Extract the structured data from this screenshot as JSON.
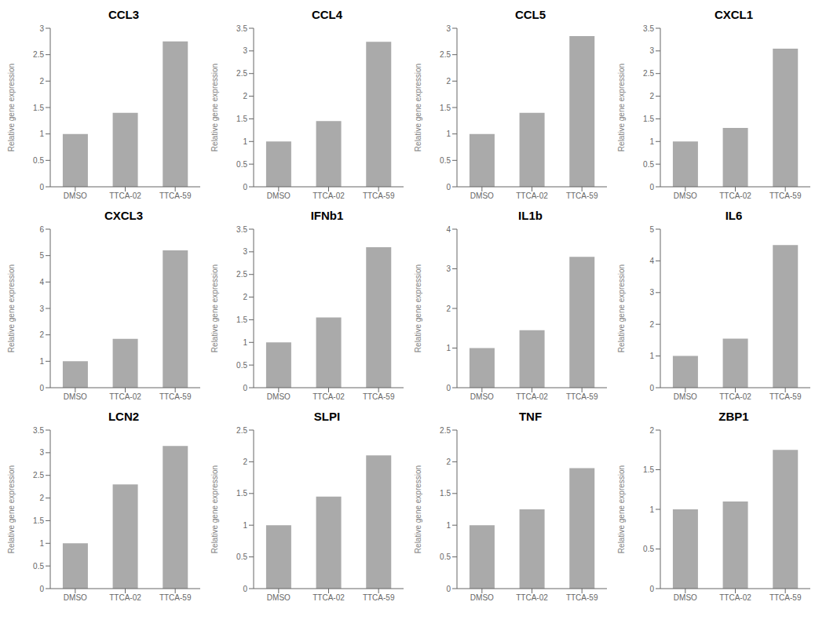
{
  "chart_data": [
    {
      "type": "bar",
      "title": "CCL3",
      "categories": [
        "DMSO",
        "TTCA-02",
        "TTCA-59"
      ],
      "values": [
        1.0,
        1.4,
        2.75
      ],
      "color": "#aaaaaa",
      "ylabel": "Relative gene expression",
      "ylim": [
        0,
        3
      ],
      "yticks": [
        0,
        0.5,
        1.0,
        1.5,
        2.0,
        2.5,
        3.0
      ],
      "grid": false
    },
    {
      "type": "bar",
      "title": "CCL4",
      "categories": [
        "DMSO",
        "TTCA-02",
        "TTCA-59"
      ],
      "values": [
        1.0,
        1.45,
        3.2
      ],
      "color": "#aaaaaa",
      "ylabel": "Relative gene expression",
      "ylim": [
        0,
        3.5
      ],
      "yticks": [
        0,
        0.5,
        1.0,
        1.5,
        2.0,
        2.5,
        3.0,
        3.5
      ],
      "grid": false
    },
    {
      "type": "bar",
      "title": "CCL5",
      "categories": [
        "DMSO",
        "TTCA-02",
        "TTCA-59"
      ],
      "values": [
        1.0,
        1.4,
        2.85
      ],
      "color": "#aaaaaa",
      "ylabel": "Relative gene expression",
      "ylim": [
        0,
        3
      ],
      "yticks": [
        0,
        0.5,
        1.0,
        1.5,
        2.0,
        2.5,
        3.0
      ],
      "grid": false
    },
    {
      "type": "bar",
      "title": "CXCL1",
      "categories": [
        "DMSO",
        "TTCA-02",
        "TTCA-59"
      ],
      "values": [
        1.0,
        1.3,
        3.05
      ],
      "color": "#aaaaaa",
      "ylabel": "Relative gene expression",
      "ylim": [
        0,
        3.5
      ],
      "yticks": [
        0,
        0.5,
        1.0,
        1.5,
        2.0,
        2.5,
        3.0,
        3.5
      ],
      "grid": false
    },
    {
      "type": "bar",
      "title": "CXCL3",
      "categories": [
        "DMSO",
        "TTCA-02",
        "TTCA-59"
      ],
      "values": [
        1.0,
        1.85,
        5.2
      ],
      "color": "#aaaaaa",
      "ylabel": "Relative gene expression",
      "ylim": [
        0,
        6
      ],
      "yticks": [
        0,
        1,
        2,
        3,
        4,
        5,
        6
      ],
      "grid": false
    },
    {
      "type": "bar",
      "title": "IFNb1",
      "categories": [
        "DMSO",
        "TTCA-02",
        "TTCA-59"
      ],
      "values": [
        1.0,
        1.55,
        3.1
      ],
      "color": "#aaaaaa",
      "ylabel": "Relative gene expression",
      "ylim": [
        0,
        3.5
      ],
      "yticks": [
        0,
        0.5,
        1.0,
        1.5,
        2.0,
        2.5,
        3.0,
        3.5
      ],
      "grid": false
    },
    {
      "type": "bar",
      "title": "IL1b",
      "categories": [
        "DMSO",
        "TTCA-02",
        "TTCA-59"
      ],
      "values": [
        1.0,
        1.45,
        3.3
      ],
      "color": "#aaaaaa",
      "ylabel": "Relative gene expression",
      "ylim": [
        0,
        4
      ],
      "yticks": [
        0,
        1,
        2,
        3,
        4
      ],
      "grid": false
    },
    {
      "type": "bar",
      "title": "IL6",
      "categories": [
        "DMSO",
        "TTCA-02",
        "TTCA-59"
      ],
      "values": [
        1.0,
        1.55,
        4.5
      ],
      "color": "#aaaaaa",
      "ylabel": "Relative gene expression",
      "ylim": [
        0,
        5
      ],
      "yticks": [
        0,
        1,
        2,
        3,
        4,
        5
      ],
      "grid": false
    },
    {
      "type": "bar",
      "title": "LCN2",
      "categories": [
        "DMSO",
        "TTCA-02",
        "TTCA-59"
      ],
      "values": [
        1.0,
        2.3,
        3.15
      ],
      "color": "#aaaaaa",
      "ylabel": "Relative gene expression",
      "ylim": [
        0,
        3.5
      ],
      "yticks": [
        0,
        0.5,
        1.0,
        1.5,
        2.0,
        2.5,
        3.0,
        3.5
      ],
      "grid": false
    },
    {
      "type": "bar",
      "title": "SLPI",
      "categories": [
        "DMSO",
        "TTCA-02",
        "TTCA-59"
      ],
      "values": [
        1.0,
        1.45,
        2.1
      ],
      "color": "#aaaaaa",
      "ylabel": "Relative gene expression",
      "ylim": [
        0,
        2.5
      ],
      "yticks": [
        0,
        0.5,
        1.0,
        1.5,
        2.0,
        2.5
      ],
      "grid": false
    },
    {
      "type": "bar",
      "title": "TNF",
      "categories": [
        "DMSO",
        "TTCA-02",
        "TTCA-59"
      ],
      "values": [
        1.0,
        1.25,
        1.9
      ],
      "color": "#aaaaaa",
      "ylabel": "Relative gene expression",
      "ylim": [
        0,
        2.5
      ],
      "yticks": [
        0,
        0.5,
        1.0,
        1.5,
        2.0,
        2.5
      ],
      "grid": false
    },
    {
      "type": "bar",
      "title": "ZBP1",
      "categories": [
        "DMSO",
        "TTCA-02",
        "TTCA-59"
      ],
      "values": [
        1.0,
        1.1,
        1.75
      ],
      "color": "#aaaaaa",
      "ylabel": "Relative gene expression",
      "ylim": [
        0,
        2
      ],
      "yticks": [
        0,
        0.5,
        1.0,
        1.5,
        2.0
      ],
      "grid": false
    }
  ]
}
